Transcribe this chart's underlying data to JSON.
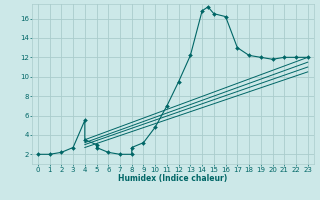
{
  "xlabel": "Humidex (Indice chaleur)",
  "bg_color": "#cce8e8",
  "grid_color": "#aacccc",
  "line_color": "#006666",
  "xlim": [
    -0.5,
    23.5
  ],
  "ylim": [
    1,
    17.5
  ],
  "xticks": [
    0,
    1,
    2,
    3,
    4,
    5,
    6,
    7,
    8,
    9,
    10,
    11,
    12,
    13,
    14,
    15,
    16,
    17,
    18,
    19,
    20,
    21,
    22,
    23
  ],
  "yticks": [
    2,
    4,
    6,
    8,
    10,
    12,
    14,
    16
  ],
  "main_line": {
    "x": [
      0,
      1,
      2,
      3,
      4,
      4,
      5,
      5,
      6,
      7,
      8,
      8,
      9,
      10,
      11,
      12,
      13,
      14,
      14.5,
      15,
      16,
      17,
      18,
      19,
      20,
      21,
      22,
      23
    ],
    "y": [
      2,
      2,
      2.2,
      2.7,
      5.5,
      3.5,
      3.0,
      2.7,
      2.2,
      2.0,
      2.0,
      2.7,
      3.2,
      4.8,
      7.0,
      9.5,
      12.2,
      16.8,
      17.2,
      16.5,
      16.2,
      13.0,
      12.2,
      12.0,
      11.8,
      12.0,
      12.0,
      12.0
    ]
  },
  "linear_lines": [
    {
      "x": [
        4,
        23
      ],
      "y": [
        3.5,
        12.0
      ]
    },
    {
      "x": [
        4,
        23
      ],
      "y": [
        3.2,
        11.5
      ]
    },
    {
      "x": [
        4,
        23
      ],
      "y": [
        3.0,
        11.0
      ]
    },
    {
      "x": [
        4,
        23
      ],
      "y": [
        2.7,
        10.5
      ]
    }
  ]
}
